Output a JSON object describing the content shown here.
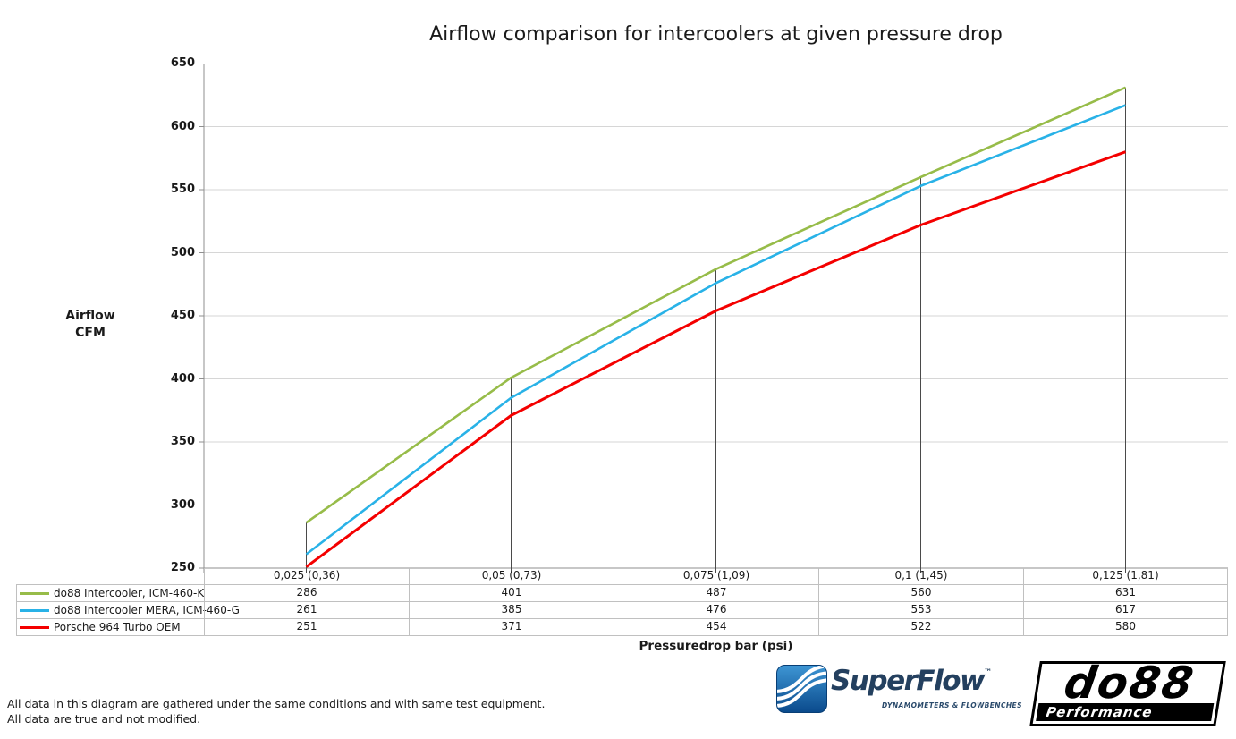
{
  "chart_data": {
    "type": "line",
    "title": "Airflow comparison for intercoolers at given pressure drop",
    "ylabel": "Airflow\nCFM",
    "xlabel": "Pressuredrop bar (psi)",
    "ylim": [
      250,
      650
    ],
    "yticks": [
      650,
      600,
      550,
      500,
      450,
      400,
      350,
      300,
      250
    ],
    "grid": true,
    "legend_position": "table-left",
    "categories": [
      "0,025 (0,36)",
      "0,05 (0,73)",
      "0,075 (1,09)",
      "0,1 (1,45)",
      "0,125 (1,81)"
    ],
    "series": [
      {
        "name": "do88 Intercooler, ICM-460-K",
        "color": "#97BC49",
        "values": [
          286,
          401,
          487,
          560,
          631
        ]
      },
      {
        "name": "do88 Intercooler MERA, ICM-460-G",
        "color": "#29B2E7",
        "values": [
          261,
          385,
          476,
          553,
          617
        ]
      },
      {
        "name": "Porsche 964 Turbo OEM",
        "color": "#F40000",
        "values": [
          251,
          371,
          454,
          522,
          580
        ]
      }
    ]
  },
  "footer": {
    "line1": "All data in this diagram are gathered under the same conditions and with same test equipment.",
    "line2": "All data are true and not modified."
  },
  "logos": {
    "superflow": {
      "name": "SuperFlow",
      "trademark": "™",
      "tagline": "DYNAMOMETERS & FLOWBENCHES",
      "brand_color": "#24405F",
      "icon_color": "#1668A8"
    },
    "do88": {
      "name": "do88",
      "sub": "Performance",
      "color": "#000000"
    }
  }
}
